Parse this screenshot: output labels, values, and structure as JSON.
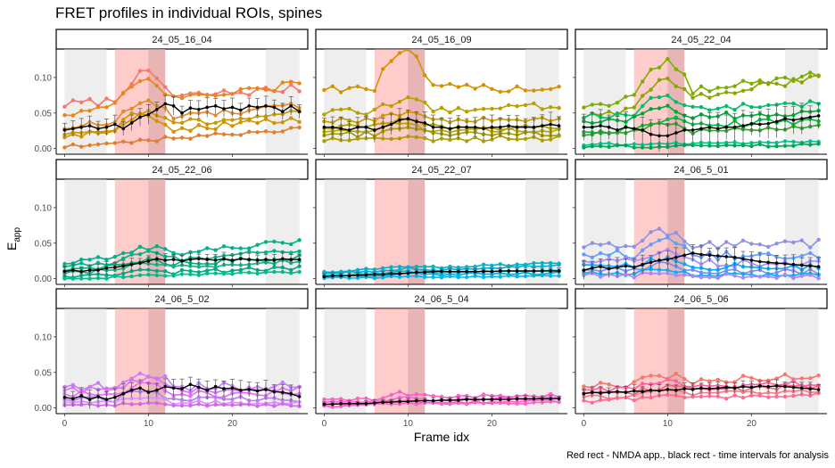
{
  "chart_data": {
    "type": "line",
    "title": "FRET profiles in individual ROIs, spines",
    "xlabel": "Frame idx",
    "ylabel_main": "E",
    "ylabel_sub": "app",
    "caption": "Red rect - NMDA app., black rect - time intervals for analysis",
    "xlim": [
      -1,
      29
    ],
    "ylim": [
      -0.008,
      0.14
    ],
    "x_ticks": [
      0,
      10,
      20
    ],
    "y_ticks": [
      0.0,
      0.05,
      0.1
    ],
    "y_tick_labels": [
      "0.00",
      "0.05",
      "0.10"
    ],
    "grey_bands": [
      [
        0,
        5
      ],
      [
        24,
        28
      ]
    ],
    "red_band": [
      6,
      12
    ],
    "dark_band": [
      10,
      12
    ],
    "colors": {
      "grey_band": "#d9d9d9",
      "red_band": "#ff9999",
      "dark_band": "#d3a3a3",
      "mean_line": "#000000",
      "strip_fill": "#ffffff",
      "axis": "#000000"
    },
    "panels": [
      {
        "label": "24_05_16_04",
        "colors": [
          "#f8766d",
          "#e7861b",
          "#e28a2b",
          "#c79800",
          "#d39200",
          "#e07d2f"
        ],
        "series": [
          {
            "base": 0.062,
            "end": 0.085,
            "peak": 0.035,
            "noise": 0.006
          },
          {
            "base": 0.05,
            "end": 0.09,
            "peak": 0.03,
            "noise": 0.006
          },
          {
            "base": 0.03,
            "end": 0.06,
            "peak": 0.025,
            "noise": 0.005
          },
          {
            "base": 0.022,
            "end": 0.05,
            "peak": 0.02,
            "noise": 0.005
          },
          {
            "base": 0.018,
            "end": 0.04,
            "peak": 0.02,
            "noise": 0.005
          },
          {
            "base": 0.003,
            "end": 0.028,
            "peak": 0.0,
            "noise": 0.003
          }
        ],
        "mean": [
          0.026,
          0.028,
          0.03,
          0.032,
          0.028,
          0.03,
          0.034,
          0.028,
          0.036,
          0.044,
          0.048,
          0.055,
          0.063,
          0.06,
          0.05,
          0.057,
          0.055,
          0.058,
          0.06,
          0.056,
          0.058,
          0.054,
          0.06,
          0.058,
          0.06,
          0.058,
          0.052,
          0.06,
          0.052
        ],
        "err": 0.012
      },
      {
        "label": "24_05_16_09",
        "colors": [
          "#d39200",
          "#b8a000",
          "#c79800",
          "#a5a100",
          "#bea000",
          "#9f9d00",
          "#b09c00"
        ],
        "series": [
          {
            "base": 0.085,
            "end": 0.085,
            "peak": 0.05,
            "noise": 0.006
          },
          {
            "base": 0.05,
            "end": 0.06,
            "peak": 0.015,
            "noise": 0.005
          },
          {
            "base": 0.04,
            "end": 0.04,
            "peak": 0.01,
            "noise": 0.004
          },
          {
            "base": 0.03,
            "end": 0.03,
            "peak": 0.01,
            "noise": 0.004
          },
          {
            "base": 0.025,
            "end": 0.025,
            "peak": 0.01,
            "noise": 0.004
          },
          {
            "base": 0.02,
            "end": 0.02,
            "peak": 0.01,
            "noise": 0.004
          },
          {
            "base": 0.012,
            "end": 0.015,
            "peak": 0.005,
            "noise": 0.004
          }
        ],
        "mean": [
          0.03,
          0.03,
          0.028,
          0.026,
          0.03,
          0.03,
          0.026,
          0.03,
          0.034,
          0.04,
          0.042,
          0.038,
          0.036,
          0.03,
          0.03,
          0.028,
          0.03,
          0.03,
          0.03,
          0.028,
          0.03,
          0.03,
          0.032,
          0.03,
          0.03,
          0.03,
          0.032,
          0.034,
          0.032
        ],
        "err": 0.015
      },
      {
        "label": "24_05_22_04",
        "colors": [
          "#7cae00",
          "#8aa500",
          "#00be67",
          "#00a832",
          "#00ba38",
          "#33a02c",
          "#00c08b",
          "#00a650"
        ],
        "series": [
          {
            "base": 0.06,
            "end": 0.105,
            "peak": 0.045,
            "noise": 0.006
          },
          {
            "base": 0.045,
            "end": 0.1,
            "peak": 0.03,
            "noise": 0.006
          },
          {
            "base": 0.045,
            "end": 0.065,
            "peak": 0.02,
            "noise": 0.005
          },
          {
            "base": 0.04,
            "end": 0.05,
            "peak": 0.015,
            "noise": 0.005
          },
          {
            "base": 0.025,
            "end": 0.04,
            "peak": 0.01,
            "noise": 0.005
          },
          {
            "base": 0.02,
            "end": 0.03,
            "peak": 0.01,
            "noise": 0.004
          },
          {
            "base": 0.005,
            "end": 0.01,
            "peak": 0.0,
            "noise": 0.002
          },
          {
            "base": 0.002,
            "end": 0.005,
            "peak": 0.0,
            "noise": 0.002
          }
        ],
        "mean": [
          0.03,
          0.03,
          0.032,
          0.03,
          0.026,
          0.03,
          0.028,
          0.026,
          0.02,
          0.018,
          0.018,
          0.022,
          0.026,
          0.026,
          0.028,
          0.03,
          0.028,
          0.03,
          0.03,
          0.032,
          0.035,
          0.034,
          0.035,
          0.038,
          0.042,
          0.04,
          0.042,
          0.044,
          0.046
        ],
        "err": 0.02
      },
      {
        "label": "24_05_22_06",
        "colors": [
          "#00b08f",
          "#00b486",
          "#00ad75",
          "#1aaf8a",
          "#00a884",
          "#00bd8a"
        ],
        "series": [
          {
            "base": 0.022,
            "end": 0.052,
            "peak": 0.012,
            "noise": 0.004
          },
          {
            "base": 0.018,
            "end": 0.04,
            "peak": 0.01,
            "noise": 0.004
          },
          {
            "base": 0.012,
            "end": 0.03,
            "peak": 0.008,
            "noise": 0.004
          },
          {
            "base": 0.008,
            "end": 0.025,
            "peak": 0.006,
            "noise": 0.003
          },
          {
            "base": 0.004,
            "end": 0.015,
            "peak": 0.004,
            "noise": 0.003
          },
          {
            "base": 0.0,
            "end": 0.01,
            "peak": 0.002,
            "noise": 0.002
          }
        ],
        "mean": [
          0.01,
          0.012,
          0.01,
          0.012,
          0.012,
          0.015,
          0.016,
          0.018,
          0.02,
          0.022,
          0.025,
          0.028,
          0.026,
          0.027,
          0.025,
          0.027,
          0.028,
          0.027,
          0.026,
          0.028,
          0.026,
          0.028,
          0.027,
          0.026,
          0.027,
          0.026,
          0.028,
          0.027,
          0.027
        ],
        "err": 0.008
      },
      {
        "label": "24_05_22_07",
        "colors": [
          "#00b4c4",
          "#00aed8",
          "#00bcd8",
          "#00a9e0",
          "#00b8e7"
        ],
        "series": [
          {
            "base": 0.01,
            "end": 0.022,
            "peak": 0.004,
            "noise": 0.002
          },
          {
            "base": 0.008,
            "end": 0.018,
            "peak": 0.003,
            "noise": 0.002
          },
          {
            "base": 0.005,
            "end": 0.012,
            "peak": 0.002,
            "noise": 0.002
          },
          {
            "base": 0.003,
            "end": 0.008,
            "peak": 0.002,
            "noise": 0.002
          },
          {
            "base": 0.001,
            "end": 0.004,
            "peak": 0.001,
            "noise": 0.001
          }
        ],
        "mean": [
          0.003,
          0.004,
          0.004,
          0.004,
          0.005,
          0.005,
          0.006,
          0.006,
          0.007,
          0.007,
          0.008,
          0.009,
          0.009,
          0.01,
          0.01,
          0.01,
          0.01,
          0.01,
          0.01,
          0.01,
          0.01,
          0.011,
          0.011,
          0.011,
          0.011,
          0.011,
          0.011,
          0.011,
          0.011
        ],
        "err": 0.004
      },
      {
        "label": "24_06_5_01",
        "colors": [
          "#8f91e3",
          "#619cff",
          "#a58aff",
          "#00a9ff",
          "#7b8bf0",
          "#00b2f2",
          "#b085f5"
        ],
        "series": [
          {
            "base": 0.045,
            "end": 0.05,
            "peak": 0.02,
            "noise": 0.006
          },
          {
            "base": 0.035,
            "end": 0.03,
            "peak": 0.02,
            "noise": 0.006
          },
          {
            "base": 0.025,
            "end": 0.02,
            "peak": 0.015,
            "noise": 0.005
          },
          {
            "base": 0.02,
            "end": 0.015,
            "peak": 0.01,
            "noise": 0.005
          },
          {
            "base": 0.012,
            "end": 0.01,
            "peak": 0.01,
            "noise": 0.004
          },
          {
            "base": 0.008,
            "end": 0.005,
            "peak": 0.005,
            "noise": 0.003
          },
          {
            "base": 0.005,
            "end": 0.003,
            "peak": 0.004,
            "noise": 0.003
          }
        ],
        "mean": [
          0.012,
          0.015,
          0.017,
          0.014,
          0.016,
          0.018,
          0.016,
          0.02,
          0.023,
          0.026,
          0.027,
          0.03,
          0.033,
          0.036,
          0.034,
          0.033,
          0.032,
          0.031,
          0.03,
          0.028,
          0.026,
          0.024,
          0.023,
          0.022,
          0.021,
          0.02,
          0.019,
          0.018,
          0.017
        ],
        "err": 0.012
      },
      {
        "label": "24_06_5_02",
        "colors": [
          "#c77cff",
          "#d772f5",
          "#e76bf3",
          "#b67cf0",
          "#d890ff",
          "#cf6ae0"
        ],
        "series": [
          {
            "base": 0.03,
            "end": 0.03,
            "peak": 0.02,
            "noise": 0.006
          },
          {
            "base": 0.025,
            "end": 0.025,
            "peak": 0.015,
            "noise": 0.005
          },
          {
            "base": 0.02,
            "end": 0.02,
            "peak": 0.012,
            "noise": 0.005
          },
          {
            "base": 0.012,
            "end": 0.012,
            "peak": 0.01,
            "noise": 0.004
          },
          {
            "base": 0.008,
            "end": 0.008,
            "peak": 0.006,
            "noise": 0.003
          },
          {
            "base": 0.004,
            "end": 0.004,
            "peak": 0.003,
            "noise": 0.002
          }
        ],
        "mean": [
          0.015,
          0.013,
          0.017,
          0.012,
          0.016,
          0.012,
          0.015,
          0.02,
          0.025,
          0.028,
          0.022,
          0.025,
          0.03,
          0.028,
          0.027,
          0.033,
          0.029,
          0.025,
          0.03,
          0.027,
          0.028,
          0.025,
          0.026,
          0.024,
          0.026,
          0.023,
          0.022,
          0.02,
          0.016
        ],
        "err": 0.012
      },
      {
        "label": "24_06_5_04",
        "colors": [
          "#ff61c3",
          "#f564e3",
          "#ff66a8",
          "#fd61d1"
        ],
        "series": [
          {
            "base": 0.012,
            "end": 0.018,
            "peak": 0.006,
            "noise": 0.003
          },
          {
            "base": 0.008,
            "end": 0.014,
            "peak": 0.004,
            "noise": 0.002
          },
          {
            "base": 0.005,
            "end": 0.01,
            "peak": 0.003,
            "noise": 0.002
          },
          {
            "base": 0.003,
            "end": 0.008,
            "peak": 0.002,
            "noise": 0.002
          }
        ],
        "mean": [
          0.005,
          0.005,
          0.006,
          0.006,
          0.006,
          0.006,
          0.007,
          0.008,
          0.008,
          0.009,
          0.009,
          0.01,
          0.01,
          0.01,
          0.011,
          0.011,
          0.011,
          0.012,
          0.012,
          0.012,
          0.012,
          0.012,
          0.012,
          0.013,
          0.013,
          0.013,
          0.013,
          0.013,
          0.013
        ],
        "err": 0.004
      },
      {
        "label": "24_06_5_06",
        "colors": [
          "#f8766d",
          "#fb61a0",
          "#ef6380",
          "#f37b89",
          "#ff6c91"
        ],
        "series": [
          {
            "base": 0.03,
            "end": 0.045,
            "peak": 0.01,
            "noise": 0.005
          },
          {
            "base": 0.025,
            "end": 0.035,
            "peak": 0.008,
            "noise": 0.004
          },
          {
            "base": 0.02,
            "end": 0.03,
            "peak": 0.006,
            "noise": 0.004
          },
          {
            "base": 0.015,
            "end": 0.025,
            "peak": 0.005,
            "noise": 0.004
          },
          {
            "base": 0.01,
            "end": 0.02,
            "peak": 0.004,
            "noise": 0.003
          }
        ],
        "mean": [
          0.02,
          0.022,
          0.021,
          0.022,
          0.023,
          0.022,
          0.024,
          0.023,
          0.025,
          0.024,
          0.026,
          0.025,
          0.027,
          0.026,
          0.028,
          0.027,
          0.028,
          0.029,
          0.028,
          0.03,
          0.029,
          0.031,
          0.03,
          0.031,
          0.03,
          0.029,
          0.028,
          0.027,
          0.026
        ],
        "err": 0.008
      }
    ]
  }
}
